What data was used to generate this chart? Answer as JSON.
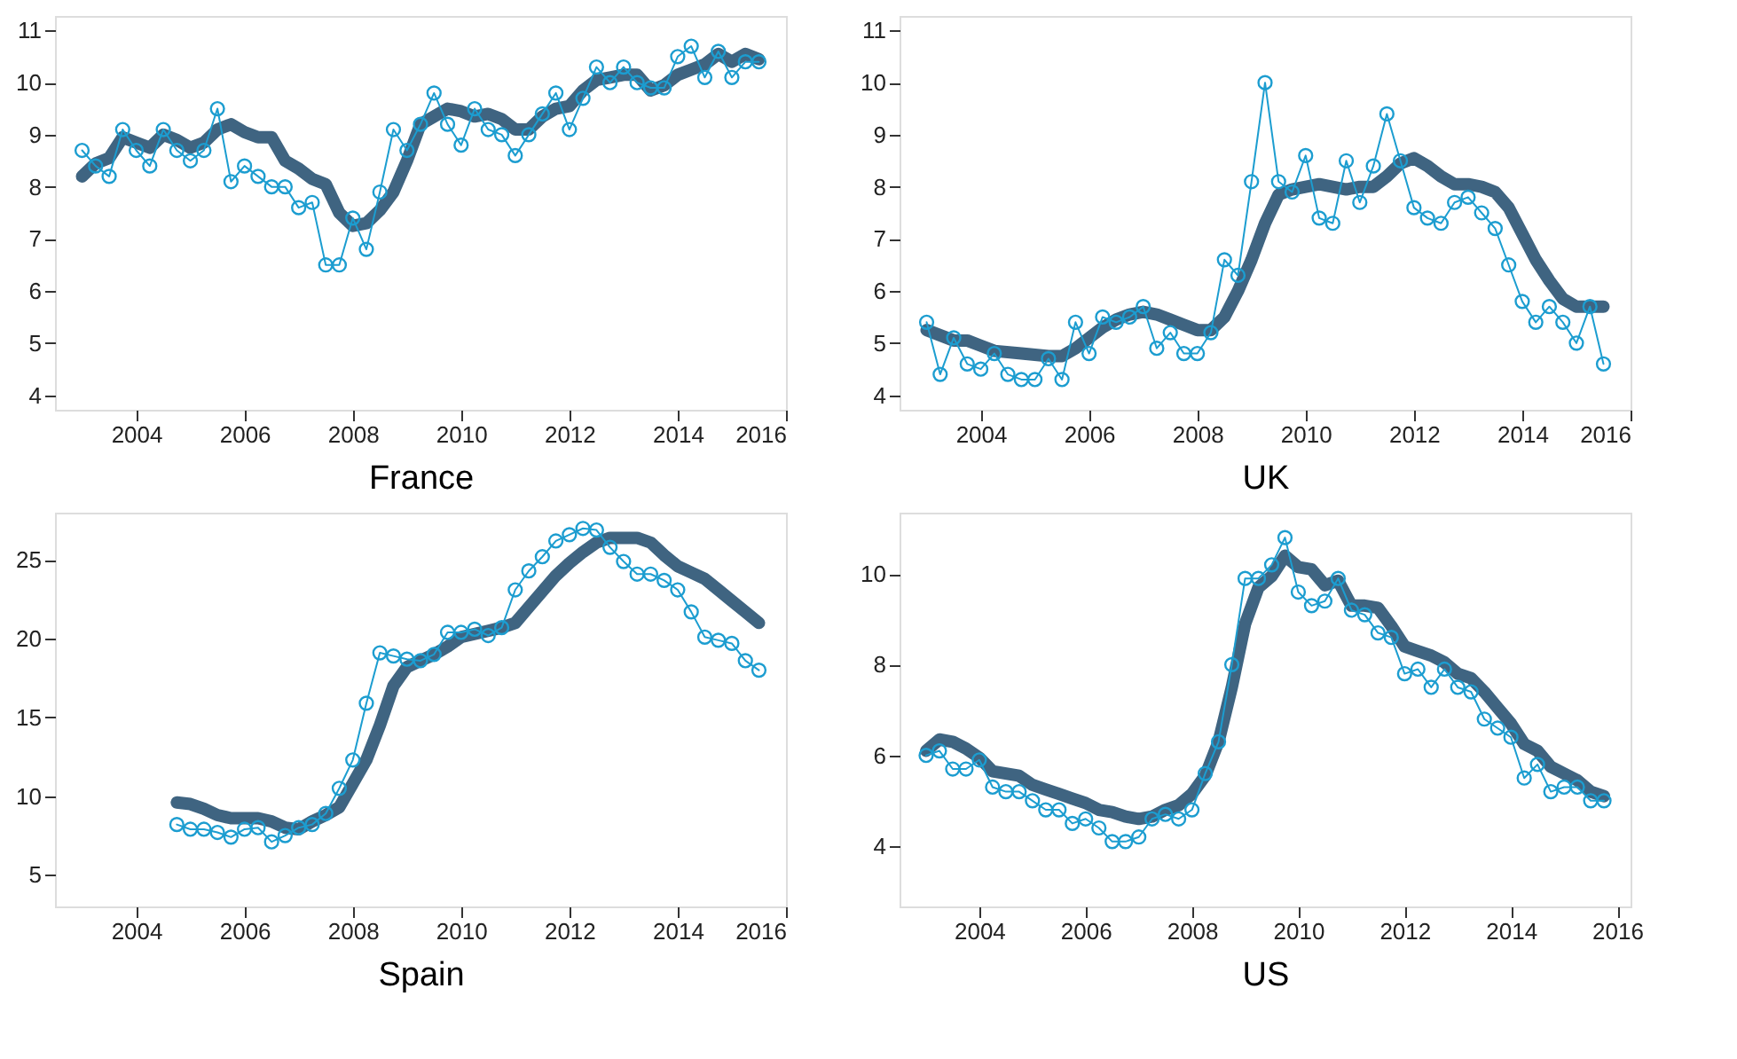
{
  "chart_data": [
    {
      "type": "line",
      "xlabel": "France",
      "xlim": [
        2002.5,
        2016
      ],
      "xticks": [
        2004,
        2006,
        2008,
        2010,
        2012,
        2014,
        2016
      ],
      "ylim": [
        3.72,
        11.28
      ],
      "yticks": [
        4,
        5,
        6,
        7,
        8,
        9,
        10,
        11
      ],
      "grid": false,
      "series": [
        {
          "color": "#3f6481",
          "marker": "none",
          "line_style": "solid",
          "x": [
            2003,
            2003.25,
            2003.5,
            2003.75,
            2004,
            2004.25,
            2004.5,
            2004.75,
            2005,
            2005.25,
            2005.5,
            2005.75,
            2006,
            2006.25,
            2006.5,
            2006.75,
            2007,
            2007.25,
            2007.5,
            2007.75,
            2008,
            2008.25,
            2008.5,
            2008.75,
            2009,
            2009.25,
            2009.5,
            2009.75,
            2010,
            2010.25,
            2010.5,
            2010.75,
            2011,
            2011.25,
            2011.5,
            2011.75,
            2012,
            2012.25,
            2012.5,
            2012.75,
            2013,
            2013.25,
            2013.5,
            2013.75,
            2014,
            2014.25,
            2014.5,
            2014.75,
            2015,
            2015.25,
            2015.5
          ],
          "values": [
            8.2,
            8.45,
            8.55,
            8.95,
            8.85,
            8.75,
            9.0,
            8.9,
            8.75,
            8.85,
            9.1,
            9.2,
            9.05,
            8.95,
            8.95,
            8.5,
            8.35,
            8.15,
            8.05,
            7.5,
            7.25,
            7.3,
            7.55,
            7.9,
            8.5,
            9.2,
            9.35,
            9.5,
            9.45,
            9.35,
            9.4,
            9.3,
            9.1,
            9.1,
            9.35,
            9.5,
            9.55,
            9.85,
            10.05,
            10.1,
            10.15,
            10.15,
            9.85,
            9.95,
            10.15,
            10.25,
            10.35,
            10.55,
            10.4,
            10.55,
            10.45
          ]
        },
        {
          "color": "#1c9dd0",
          "marker": "circle",
          "line_style": "solid",
          "x": [
            2003,
            2003.25,
            2003.5,
            2003.75,
            2004,
            2004.25,
            2004.5,
            2004.75,
            2005,
            2005.25,
            2005.5,
            2005.75,
            2006,
            2006.25,
            2006.5,
            2006.75,
            2007,
            2007.25,
            2007.5,
            2007.75,
            2008,
            2008.25,
            2008.5,
            2008.75,
            2009,
            2009.25,
            2009.5,
            2009.75,
            2010,
            2010.25,
            2010.5,
            2010.75,
            2011,
            2011.25,
            2011.5,
            2011.75,
            2012,
            2012.25,
            2012.5,
            2012.75,
            2013,
            2013.25,
            2013.5,
            2013.75,
            2014,
            2014.25,
            2014.5,
            2014.75,
            2015,
            2015.25,
            2015.5
          ],
          "values": [
            8.7,
            8.4,
            8.2,
            9.1,
            8.7,
            8.4,
            9.1,
            8.7,
            8.5,
            8.7,
            9.5,
            8.1,
            8.4,
            8.2,
            8.0,
            8.0,
            7.6,
            7.7,
            6.5,
            6.5,
            7.4,
            6.8,
            7.9,
            9.1,
            8.7,
            9.2,
            9.8,
            9.2,
            8.8,
            9.5,
            9.1,
            9.0,
            8.6,
            9.0,
            9.4,
            9.8,
            9.1,
            9.7,
            10.3,
            10.0,
            10.3,
            10.0,
            9.9,
            9.9,
            10.5,
            10.7,
            10.1,
            10.6,
            10.1,
            10.4,
            10.4
          ]
        }
      ]
    },
    {
      "type": "line",
      "xlabel": "UK",
      "xlim": [
        2002.5,
        2016
      ],
      "xticks": [
        2004,
        2006,
        2008,
        2010,
        2012,
        2014,
        2016
      ],
      "ylim": [
        3.72,
        11.28
      ],
      "yticks": [
        4,
        5,
        6,
        7,
        8,
        9,
        10,
        11
      ],
      "grid": false,
      "series": [
        {
          "color": "#3f6481",
          "marker": "none",
          "line_style": "solid",
          "x": [
            2003,
            2003.5,
            2003.75,
            2004,
            2004.25,
            2004.75,
            2005.25,
            2005.5,
            2005.75,
            2006,
            2006.25,
            2006.5,
            2006.75,
            2007,
            2007.25,
            2007.5,
            2007.75,
            2008,
            2008.25,
            2008.5,
            2008.75,
            2009,
            2009.25,
            2009.5,
            2009.75,
            2010,
            2010.25,
            2010.5,
            2010.75,
            2011,
            2011.25,
            2011.5,
            2011.75,
            2012,
            2012.25,
            2012.5,
            2012.75,
            2013,
            2013.25,
            2013.5,
            2013.75,
            2014,
            2014.25,
            2014.5,
            2014.75,
            2015,
            2015.25,
            2015.5
          ],
          "values": [
            5.25,
            5.05,
            5.05,
            4.95,
            4.85,
            4.8,
            4.75,
            4.75,
            4.9,
            5.1,
            5.3,
            5.45,
            5.55,
            5.6,
            5.55,
            5.45,
            5.35,
            5.25,
            5.25,
            5.5,
            6.0,
            6.6,
            7.3,
            7.85,
            7.95,
            8.0,
            8.05,
            8.0,
            7.95,
            8.0,
            8.0,
            8.2,
            8.45,
            8.55,
            8.4,
            8.2,
            8.05,
            8.05,
            8.0,
            7.9,
            7.6,
            7.1,
            6.6,
            6.2,
            5.85,
            5.7,
            5.7,
            5.7
          ]
        },
        {
          "color": "#1c9dd0",
          "marker": "circle",
          "line_style": "solid",
          "x": [
            2003,
            2003.25,
            2003.5,
            2003.75,
            2004,
            2004.25,
            2004.5,
            2004.75,
            2005,
            2005.25,
            2005.5,
            2005.75,
            2006,
            2006.25,
            2006.5,
            2006.75,
            2007,
            2007.25,
            2007.5,
            2007.75,
            2008,
            2008.25,
            2008.5,
            2008.75,
            2009,
            2009.25,
            2009.5,
            2009.75,
            2010,
            2010.25,
            2010.5,
            2010.75,
            2011,
            2011.25,
            2011.5,
            2011.75,
            2012,
            2012.25,
            2012.5,
            2012.75,
            2013,
            2013.25,
            2013.5,
            2013.75,
            2014,
            2014.25,
            2014.5,
            2014.75,
            2015,
            2015.25,
            2015.5
          ],
          "values": [
            5.4,
            4.4,
            5.1,
            4.6,
            4.5,
            4.8,
            4.4,
            4.3,
            4.3,
            4.7,
            4.3,
            5.4,
            4.8,
            5.5,
            5.4,
            5.5,
            5.7,
            4.9,
            5.2,
            4.8,
            4.8,
            5.2,
            6.6,
            6.3,
            8.1,
            10.0,
            8.1,
            7.9,
            8.6,
            7.4,
            7.3,
            8.5,
            7.7,
            8.4,
            9.4,
            8.5,
            7.6,
            7.4,
            7.3,
            7.7,
            7.8,
            7.5,
            7.2,
            6.5,
            5.8,
            5.4,
            5.7,
            5.4,
            5.0,
            5.7,
            4.6
          ]
        }
      ]
    },
    {
      "type": "line",
      "xlabel": "Spain",
      "xlim": [
        2002.5,
        2016
      ],
      "xticks": [
        2004,
        2006,
        2008,
        2010,
        2012,
        2014,
        2016
      ],
      "ylim": [
        3,
        28
      ],
      "yticks": [
        5,
        10,
        15,
        20,
        25
      ],
      "grid": false,
      "series": [
        {
          "color": "#3f6481",
          "marker": "none",
          "line_style": "solid",
          "x": [
            2004.75,
            2005,
            2005.25,
            2005.5,
            2005.75,
            2006,
            2006.25,
            2006.5,
            2006.75,
            2007,
            2007.25,
            2007.5,
            2007.75,
            2008,
            2008.25,
            2008.5,
            2008.75,
            2009,
            2009.25,
            2009.5,
            2009.75,
            2010,
            2010.25,
            2010.5,
            2010.75,
            2011,
            2011.25,
            2011.5,
            2011.75,
            2012,
            2012.25,
            2012.5,
            2012.75,
            2013,
            2013.25,
            2013.5,
            2013.75,
            2014,
            2014.25,
            2014.5,
            2014.75,
            2015,
            2015.25,
            2015.5
          ],
          "values": [
            9.6,
            9.5,
            9.2,
            8.8,
            8.6,
            8.6,
            8.6,
            8.4,
            8.0,
            7.9,
            8.4,
            8.8,
            9.3,
            10.8,
            12.3,
            14.5,
            17.0,
            18.2,
            18.6,
            19.0,
            19.5,
            20.1,
            20.3,
            20.5,
            20.7,
            21.0,
            22.0,
            23.0,
            24.0,
            24.8,
            25.5,
            26.1,
            26.4,
            26.4,
            26.4,
            26.1,
            25.3,
            24.6,
            24.2,
            23.8,
            23.1,
            22.4,
            21.7,
            21.0
          ]
        },
        {
          "color": "#1c9dd0",
          "marker": "circle",
          "line_style": "solid",
          "x": [
            2004.75,
            2005,
            2005.25,
            2005.5,
            2005.75,
            2006,
            2006.25,
            2006.5,
            2006.75,
            2007,
            2007.25,
            2007.5,
            2007.75,
            2008,
            2008.25,
            2008.5,
            2008.75,
            2009,
            2009.25,
            2009.5,
            2009.75,
            2010,
            2010.25,
            2010.5,
            2010.75,
            2011,
            2011.25,
            2011.5,
            2011.75,
            2012,
            2012.25,
            2012.5,
            2012.75,
            2013,
            2013.25,
            2013.5,
            2013.75,
            2014,
            2014.25,
            2014.5,
            2014.75,
            2015,
            2015.25,
            2015.5
          ],
          "values": [
            8.2,
            7.9,
            7.9,
            7.7,
            7.4,
            7.9,
            8.0,
            7.1,
            7.5,
            8.0,
            8.2,
            8.9,
            10.5,
            12.3,
            15.9,
            19.1,
            18.9,
            18.7,
            18.6,
            19.0,
            20.4,
            20.4,
            20.6,
            20.2,
            20.7,
            23.1,
            24.3,
            25.2,
            26.2,
            26.6,
            27.0,
            26.9,
            25.8,
            24.9,
            24.1,
            24.1,
            23.7,
            23.1,
            21.7,
            20.1,
            19.9,
            19.7,
            18.6,
            18.0
          ]
        }
      ]
    },
    {
      "type": "line",
      "xlabel": "US",
      "xlim": [
        2002.5,
        2016.25
      ],
      "xticks": [
        2004,
        2006,
        2008,
        2010,
        2012,
        2014,
        2016
      ],
      "ylim": [
        2.67,
        11.35
      ],
      "yticks": [
        4,
        6,
        8,
        10
      ],
      "grid": false,
      "series": [
        {
          "color": "#3f6481",
          "marker": "none",
          "line_style": "solid",
          "x": [
            2003,
            2003.25,
            2003.5,
            2003.75,
            2004,
            2004.25,
            2004.5,
            2004.75,
            2005,
            2005.25,
            2005.5,
            2005.75,
            2006,
            2006.25,
            2006.5,
            2006.75,
            2007,
            2007.25,
            2007.5,
            2007.75,
            2008,
            2008.25,
            2008.5,
            2008.75,
            2009,
            2009.25,
            2009.5,
            2009.75,
            2010,
            2010.25,
            2010.5,
            2010.75,
            2011,
            2011.25,
            2011.5,
            2011.75,
            2012,
            2012.25,
            2012.5,
            2012.75,
            2013,
            2013.25,
            2013.5,
            2013.75,
            2014,
            2014.25,
            2014.5,
            2014.75,
            2015,
            2015.25,
            2015.5,
            2015.75
          ],
          "values": [
            6.1,
            6.35,
            6.3,
            6.15,
            5.95,
            5.65,
            5.6,
            5.55,
            5.35,
            5.25,
            5.15,
            5.05,
            4.95,
            4.8,
            4.75,
            4.65,
            4.6,
            4.65,
            4.8,
            4.9,
            5.15,
            5.55,
            6.3,
            7.5,
            8.9,
            9.7,
            9.95,
            10.4,
            10.15,
            10.1,
            9.75,
            9.85,
            9.3,
            9.3,
            9.25,
            8.85,
            8.4,
            8.3,
            8.2,
            8.05,
            7.8,
            7.7,
            7.4,
            7.05,
            6.7,
            6.25,
            6.1,
            5.75,
            5.6,
            5.45,
            5.2,
            5.1
          ]
        },
        {
          "color": "#1c9dd0",
          "marker": "circle",
          "line_style": "solid",
          "x": [
            2003,
            2003.25,
            2003.5,
            2003.75,
            2004,
            2004.25,
            2004.5,
            2004.75,
            2005,
            2005.25,
            2005.5,
            2005.75,
            2006,
            2006.25,
            2006.5,
            2006.75,
            2007,
            2007.25,
            2007.5,
            2007.75,
            2008,
            2008.25,
            2008.5,
            2008.75,
            2009,
            2009.25,
            2009.5,
            2009.75,
            2010,
            2010.25,
            2010.5,
            2010.75,
            2011,
            2011.25,
            2011.5,
            2011.75,
            2012,
            2012.25,
            2012.5,
            2012.75,
            2013,
            2013.25,
            2013.5,
            2013.75,
            2014,
            2014.25,
            2014.5,
            2014.75,
            2015,
            2015.25,
            2015.5,
            2015.75
          ],
          "values": [
            6.0,
            6.1,
            5.7,
            5.7,
            5.9,
            5.3,
            5.2,
            5.2,
            5.0,
            4.8,
            4.8,
            4.5,
            4.6,
            4.4,
            4.1,
            4.1,
            4.2,
            4.6,
            4.7,
            4.6,
            4.8,
            5.6,
            6.3,
            8.0,
            9.9,
            9.9,
            10.2,
            10.8,
            9.6,
            9.3,
            9.4,
            9.9,
            9.2,
            9.1,
            8.7,
            8.6,
            7.8,
            7.9,
            7.5,
            7.9,
            7.5,
            7.4,
            6.8,
            6.6,
            6.4,
            5.5,
            5.8,
            5.2,
            5.3,
            5.3,
            5.0,
            5.0
          ]
        }
      ]
    }
  ]
}
